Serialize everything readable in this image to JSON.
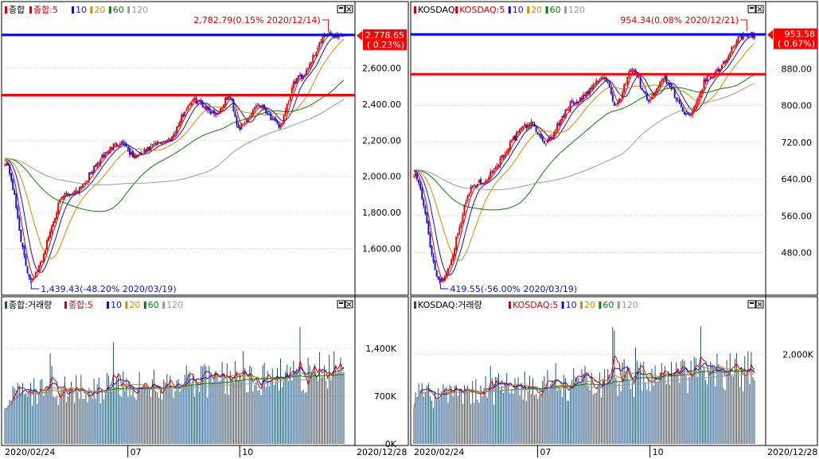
{
  "left": {
    "price_legend": [
      {
        "text": "종합",
        "color": "#d40000"
      },
      {
        "text": "종합:5",
        "color": "#d40000"
      },
      {
        "text": "10",
        "color": "#1010d0"
      },
      {
        "text": "20",
        "color": "#d48a00"
      },
      {
        "text": "60",
        "color": "#0a7a0a"
      },
      {
        "text": "120",
        "color": "#9a9a9a"
      }
    ],
    "volume_legend": [
      {
        "text": "종합:거래량",
        "color": "#1f4e79"
      },
      {
        "text": "종합:5",
        "color": "#d40000"
      },
      {
        "text": "10",
        "color": "#1010d0"
      },
      {
        "text": "20",
        "color": "#d48a00"
      },
      {
        "text": "60",
        "color": "#0a7a0a"
      },
      {
        "text": "120",
        "color": "#9a9a9a"
      }
    ],
    "high_annotation": "2,782.79(0.15% 2020/12/14)",
    "low_annotation": "1,439.43(-48.20% 2020/03/19)",
    "current_value": "2,778.65",
    "current_change": "( 0.23%)",
    "date_labels": [
      "2020/02/24",
      "07",
      "10",
      "2020/12/28"
    ]
  },
  "right": {
    "price_legend": [
      {
        "text": "KOSDAQ",
        "color": "#d40000"
      },
      {
        "text": "KOSDAQ:5",
        "color": "#d40000"
      },
      {
        "text": "10",
        "color": "#1010d0"
      },
      {
        "text": "20",
        "color": "#d48a00"
      },
      {
        "text": "60",
        "color": "#0a7a0a"
      },
      {
        "text": "120",
        "color": "#9a9a9a"
      }
    ],
    "volume_legend": [
      {
        "text": "KOSDAQ:거래량",
        "color": "#1f4e79"
      },
      {
        "text": "KOSDAQ:5",
        "color": "#d40000"
      },
      {
        "text": "10",
        "color": "#1010d0"
      },
      {
        "text": "20",
        "color": "#d48a00"
      },
      {
        "text": "60",
        "color": "#0a7a0a"
      },
      {
        "text": "120",
        "color": "#9a9a9a"
      }
    ],
    "high_annotation": "954.34(0.08% 2020/12/21)",
    "low_annotation": "419.55(-56.00% 2020/03/19)",
    "current_value": "953.58",
    "current_change": "( 0.67%)",
    "date_labels": [
      "2020/02/24",
      "07",
      "10",
      "2020/12/28"
    ]
  },
  "colors": {
    "up": "#e00000",
    "down": "#1010e0",
    "hline_blue": "#0000ff",
    "hline_red": "#ff0000",
    "volume": "#1f4e79",
    "marker": "#ff0000"
  },
  "chart_data": [
    {
      "type": "candlestick",
      "title": "종합",
      "y_ticks": [
        "2,600.00",
        "2,400.00",
        "2,200.00",
        "2,000.00",
        "1,800.00",
        "1,600.00"
      ],
      "ylim": [
        1400,
        2800
      ],
      "x_range": [
        "2020/02/24",
        "2020/12/28"
      ],
      "key_points": [
        {
          "date": "2020/02/24",
          "value": 2079
        },
        {
          "date": "2020/03/19",
          "value": 1439.43
        },
        {
          "date": "2020/04/20",
          "value": 1900
        },
        {
          "date": "2020/06/10",
          "value": 2190
        },
        {
          "date": "2020/06/20",
          "value": 2110
        },
        {
          "date": "2020/07/20",
          "value": 2200
        },
        {
          "date": "2020/08/14",
          "value": 2420
        },
        {
          "date": "2020/09/03",
          "value": 2350
        },
        {
          "date": "2020/09/15",
          "value": 2440
        },
        {
          "date": "2020/09/24",
          "value": 2270
        },
        {
          "date": "2020/10/12",
          "value": 2400
        },
        {
          "date": "2020/10/30",
          "value": 2280
        },
        {
          "date": "2020/11/16",
          "value": 2540
        },
        {
          "date": "2020/12/14",
          "value": 2782.79
        },
        {
          "date": "2020/12/28",
          "value": 2778.65
        }
      ],
      "horizontal_lines": [
        {
          "value": 2782.79,
          "color": "blue"
        },
        {
          "value": 2450,
          "color": "red"
        }
      ],
      "moving_averages": [
        "5",
        "10",
        "20",
        "60",
        "120"
      ],
      "volume_y_ticks": [
        "1,400K",
        "700K",
        "0K"
      ],
      "volume_ylim": [
        0,
        1900
      ]
    },
    {
      "type": "candlestick",
      "title": "KOSDAQ",
      "y_ticks": [
        "880.00",
        "800.00",
        "720.00",
        "640.00",
        "560.00",
        "480.00"
      ],
      "ylim": [
        410,
        960
      ],
      "x_range": [
        "2020/02/24",
        "2020/12/28"
      ],
      "key_points": [
        {
          "date": "2020/02/24",
          "value": 652
        },
        {
          "date": "2020/03/19",
          "value": 419.55
        },
        {
          "date": "2020/04/20",
          "value": 630
        },
        {
          "date": "2020/06/10",
          "value": 760
        },
        {
          "date": "2020/06/20",
          "value": 720
        },
        {
          "date": "2020/07/20",
          "value": 810
        },
        {
          "date": "2020/08/14",
          "value": 860
        },
        {
          "date": "2020/08/25",
          "value": 800
        },
        {
          "date": "2020/09/08",
          "value": 880
        },
        {
          "date": "2020/09/24",
          "value": 810
        },
        {
          "date": "2020/10/06",
          "value": 860
        },
        {
          "date": "2020/10/30",
          "value": 775
        },
        {
          "date": "2020/11/16",
          "value": 860
        },
        {
          "date": "2020/12/21",
          "value": 954.34
        },
        {
          "date": "2020/12/28",
          "value": 953.58
        }
      ],
      "horizontal_lines": [
        {
          "value": 954.34,
          "color": "blue"
        },
        {
          "value": 868,
          "color": "red"
        }
      ],
      "moving_averages": [
        "5",
        "10",
        "20",
        "60",
        "120"
      ],
      "volume_y_ticks": [
        "2,000K"
      ],
      "volume_ylim": [
        0,
        2900
      ]
    }
  ]
}
